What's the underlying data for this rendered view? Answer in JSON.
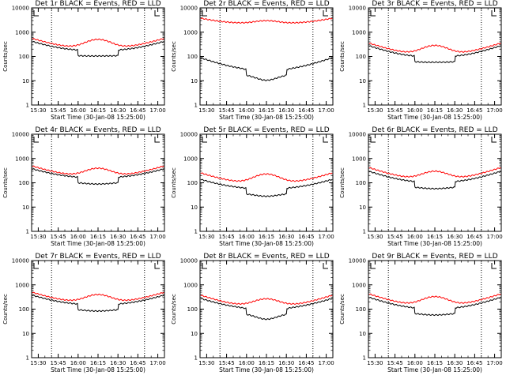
{
  "colors": {
    "events": "#000000",
    "lld": "#ff0000",
    "marker": "#000000"
  },
  "chart_data": [
    {
      "type": "line",
      "title": "Det 1r BLACK = Events, RED = LLD",
      "ylabel": "Counts/sec",
      "xlabel": "Start Time (30-Jan-08 15:25:00)",
      "x_ticks": [
        "15:30",
        "15:45",
        "16:00",
        "16:15",
        "16:30",
        "16:45",
        "17:00"
      ],
      "y_ticks": [
        "1",
        "10",
        "100",
        "1000",
        "10000"
      ],
      "ylim": [
        1,
        10000
      ],
      "yscale": "log",
      "grid": false,
      "x_markers": [
        "15:40",
        "16:50"
      ],
      "series": [
        {
          "name": "Events",
          "base": 180,
          "edge": 420,
          "dip": true,
          "bump": 1.0
        },
        {
          "name": "LLD",
          "base": 230,
          "edge": 560,
          "bump": 2.2
        }
      ]
    },
    {
      "type": "line",
      "title": "Det 2r BLACK = Events, RED = LLD",
      "ylabel": "Counts/sec",
      "xlabel": "Start Time (30-Jan-08 15:25:00)",
      "x_ticks": [
        "15:30",
        "15:45",
        "16:00",
        "16:15",
        "16:30",
        "16:45",
        "17:00"
      ],
      "y_ticks": [
        "1",
        "10",
        "100",
        "1000",
        "10000"
      ],
      "ylim": [
        1,
        10000
      ],
      "yscale": "log",
      "grid": false,
      "x_markers": [
        "15:40",
        "16:50"
      ],
      "series": [
        {
          "name": "Events",
          "base": 30,
          "edge": 90,
          "dip": true,
          "bump": 0.6
        },
        {
          "name": "LLD",
          "base": 2300,
          "edge": 3800,
          "bump": 1.3
        }
      ]
    },
    {
      "type": "line",
      "title": "Det 3r BLACK = Events, RED = LLD",
      "ylabel": "Counts/sec",
      "xlabel": "Start Time (30-Jan-08 15:25:00)",
      "x_ticks": [
        "15:30",
        "15:45",
        "16:00",
        "16:15",
        "16:30",
        "16:45",
        "17:00"
      ],
      "y_ticks": [
        "1",
        "10",
        "100",
        "1000",
        "10000"
      ],
      "ylim": [
        1,
        10000
      ],
      "yscale": "log",
      "grid": false,
      "x_markers": [
        "15:40",
        "16:50"
      ],
      "series": [
        {
          "name": "Events",
          "base": 100,
          "edge": 280,
          "dip": true,
          "bump": 1.0
        },
        {
          "name": "LLD",
          "base": 130,
          "edge": 360,
          "bump": 2.2
        }
      ]
    },
    {
      "type": "line",
      "title": "Det 4r BLACK = Events, RED = LLD",
      "ylabel": "Counts/sec",
      "xlabel": "Start Time (30-Jan-08 15:25:00)",
      "x_ticks": [
        "15:30",
        "15:45",
        "16:00",
        "16:15",
        "16:30",
        "16:45",
        "17:00"
      ],
      "y_ticks": [
        "1",
        "10",
        "100",
        "1000",
        "10000"
      ],
      "ylim": [
        1,
        10000
      ],
      "yscale": "log",
      "grid": false,
      "x_markers": [
        "15:40",
        "16:50"
      ],
      "series": [
        {
          "name": "Events",
          "base": 170,
          "edge": 380,
          "dip": true,
          "bump": 0.9
        },
        {
          "name": "LLD",
          "base": 200,
          "edge": 500,
          "bump": 2.0
        }
      ]
    },
    {
      "type": "line",
      "title": "Det 5r BLACK = Events, RED = LLD",
      "ylabel": "Counts/sec",
      "xlabel": "Start Time (30-Jan-08 15:25:00)",
      "x_ticks": [
        "15:30",
        "15:45",
        "16:00",
        "16:15",
        "16:30",
        "16:45",
        "17:00"
      ],
      "y_ticks": [
        "1",
        "10",
        "100",
        "1000",
        "10000"
      ],
      "ylim": [
        1,
        10000
      ],
      "yscale": "log",
      "grid": false,
      "x_markers": [
        "15:40",
        "16:50"
      ],
      "series": [
        {
          "name": "Events",
          "base": 60,
          "edge": 140,
          "dip": true,
          "bump": 0.8
        },
        {
          "name": "LLD",
          "base": 100,
          "edge": 260,
          "bump": 2.3
        }
      ]
    },
    {
      "type": "line",
      "title": "Det 6r BLACK = Events, RED = LLD",
      "ylabel": "Counts/sec",
      "xlabel": "Start Time (30-Jan-08 15:25:00)",
      "x_ticks": [
        "15:30",
        "15:45",
        "16:00",
        "16:15",
        "16:30",
        "16:45",
        "17:00"
      ],
      "y_ticks": [
        "1",
        "10",
        "100",
        "1000",
        "10000"
      ],
      "ylim": [
        1,
        10000
      ],
      "yscale": "log",
      "grid": false,
      "x_markers": [
        "15:40",
        "16:50"
      ],
      "series": [
        {
          "name": "Events",
          "base": 110,
          "edge": 300,
          "dip": true,
          "bump": 0.9
        },
        {
          "name": "LLD",
          "base": 150,
          "edge": 430,
          "bump": 2.0
        }
      ]
    },
    {
      "type": "line",
      "title": "Det 7r BLACK = Events, RED = LLD",
      "ylabel": "Counts/sec",
      "xlabel": "Start Time (30-Jan-08 15:25:00)",
      "x_ticks": [
        "15:30",
        "15:45",
        "16:00",
        "16:15",
        "16:30",
        "16:45",
        "17:00"
      ],
      "y_ticks": [
        "1",
        "10",
        "100",
        "1000",
        "10000"
      ],
      "ylim": [
        1,
        10000
      ],
      "yscale": "log",
      "grid": false,
      "x_markers": [
        "15:40",
        "16:50"
      ],
      "series": [
        {
          "name": "Events",
          "base": 160,
          "edge": 380,
          "dip": true,
          "bump": 0.9
        },
        {
          "name": "LLD",
          "base": 200,
          "edge": 500,
          "bump": 2.0
        }
      ]
    },
    {
      "type": "line",
      "title": "Det 8r BLACK = Events, RED = LLD",
      "ylabel": "Counts/sec",
      "xlabel": "Start Time (30-Jan-08 15:25:00)",
      "x_ticks": [
        "15:30",
        "15:45",
        "16:00",
        "16:15",
        "16:30",
        "16:45",
        "17:00"
      ],
      "y_ticks": [
        "1",
        "10",
        "100",
        "1000",
        "10000"
      ],
      "ylim": [
        1,
        10000
      ],
      "yscale": "log",
      "grid": false,
      "x_markers": [
        "15:40",
        "16:50"
      ],
      "series": [
        {
          "name": "Events",
          "base": 110,
          "edge": 280,
          "dip": true,
          "bump": 0.6
        },
        {
          "name": "LLD",
          "base": 140,
          "edge": 380,
          "bump": 1.9
        }
      ]
    },
    {
      "type": "line",
      "title": "Det 9r BLACK = Events, RED = LLD",
      "ylabel": "Counts/sec",
      "xlabel": "Start Time (30-Jan-08 15:25:00)",
      "x_ticks": [
        "15:30",
        "15:45",
        "16:00",
        "16:15",
        "16:30",
        "16:45",
        "17:00"
      ],
      "y_ticks": [
        "1",
        "10",
        "100",
        "1000",
        "10000"
      ],
      "ylim": [
        1,
        10000
      ],
      "yscale": "log",
      "grid": false,
      "x_markers": [
        "15:40",
        "16:50"
      ],
      "series": [
        {
          "name": "Events",
          "base": 110,
          "edge": 310,
          "dip": true,
          "bump": 0.9
        },
        {
          "name": "LLD",
          "base": 150,
          "edge": 430,
          "bump": 2.2
        }
      ]
    }
  ]
}
